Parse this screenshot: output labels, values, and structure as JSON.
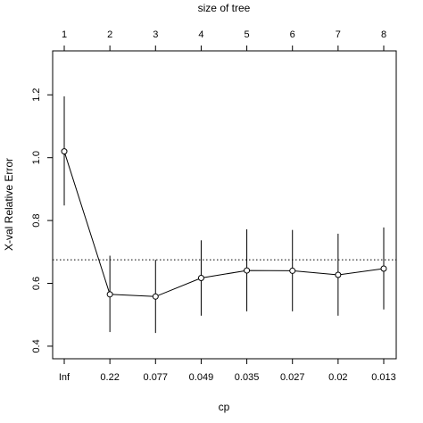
{
  "chart_data": {
    "type": "line",
    "top_title": "size of tree",
    "xlabel": "cp",
    "ylabel": "X-val Relative Error",
    "bottom_ticks": [
      "Inf",
      "0.22",
      "0.077",
      "0.049",
      "0.035",
      "0.027",
      "0.02",
      "0.013"
    ],
    "top_ticks": [
      "1",
      "2",
      "3",
      "4",
      "5",
      "6",
      "7",
      "8"
    ],
    "y_ticks": [
      "0.4",
      "0.6",
      "0.8",
      "1.0",
      "1.2"
    ],
    "ylim": [
      0.36,
      1.34
    ],
    "reference_line": 0.675,
    "series": [
      {
        "values": [
          1.02,
          0.565,
          0.558,
          0.617,
          0.641,
          0.64,
          0.627,
          0.647
        ],
        "error_low": [
          0.848,
          0.445,
          0.442,
          0.497,
          0.511,
          0.511,
          0.497,
          0.517
        ],
        "error_high": [
          1.195,
          0.688,
          0.675,
          0.737,
          0.772,
          0.77,
          0.758,
          0.778
        ]
      }
    ],
    "grid": false,
    "colors": {
      "line": "#000000",
      "reference": "#000000"
    }
  }
}
